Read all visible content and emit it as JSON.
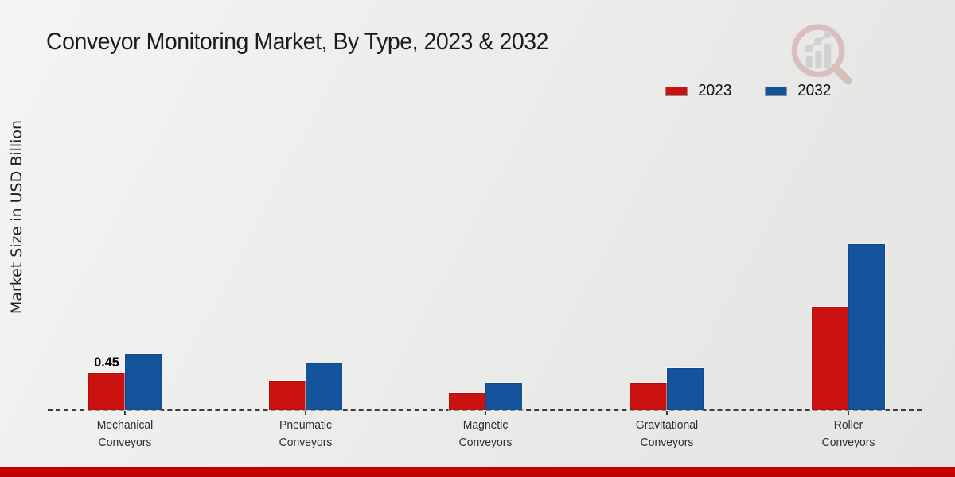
{
  "chart_data": {
    "type": "bar",
    "title": "Conveyor Monitoring Market, By Type, 2023 & 2032",
    "xlabel": "",
    "ylabel": "Market Size in USD Billion",
    "categories": [
      "Mechanical Conveyors",
      "Pneumatic Conveyors",
      "Magnetic Conveyors",
      "Gravitational Conveyors",
      "Roller Conveyors"
    ],
    "series": [
      {
        "name": "2023",
        "color": "#cc1111",
        "values": [
          0.45,
          0.35,
          0.21,
          0.33,
          1.24
        ]
      },
      {
        "name": "2032",
        "color": "#14549c",
        "values": [
          0.68,
          0.56,
          0.33,
          0.51,
          2.0
        ]
      }
    ],
    "annotations": [
      {
        "series": "2023",
        "category_index": 0,
        "text": "0.45"
      }
    ],
    "ylim": [
      0,
      2.2
    ],
    "grid": false,
    "legend_position": "top-right",
    "baseline_style": "dashed"
  },
  "legend": {
    "items": [
      {
        "label": "2023",
        "color": "#cc1111"
      },
      {
        "label": "2032",
        "color": "#14549c"
      }
    ]
  },
  "branding": {
    "logo": "magnifier-growth-chart-watermark",
    "accent_bar_color": "#c40000"
  }
}
